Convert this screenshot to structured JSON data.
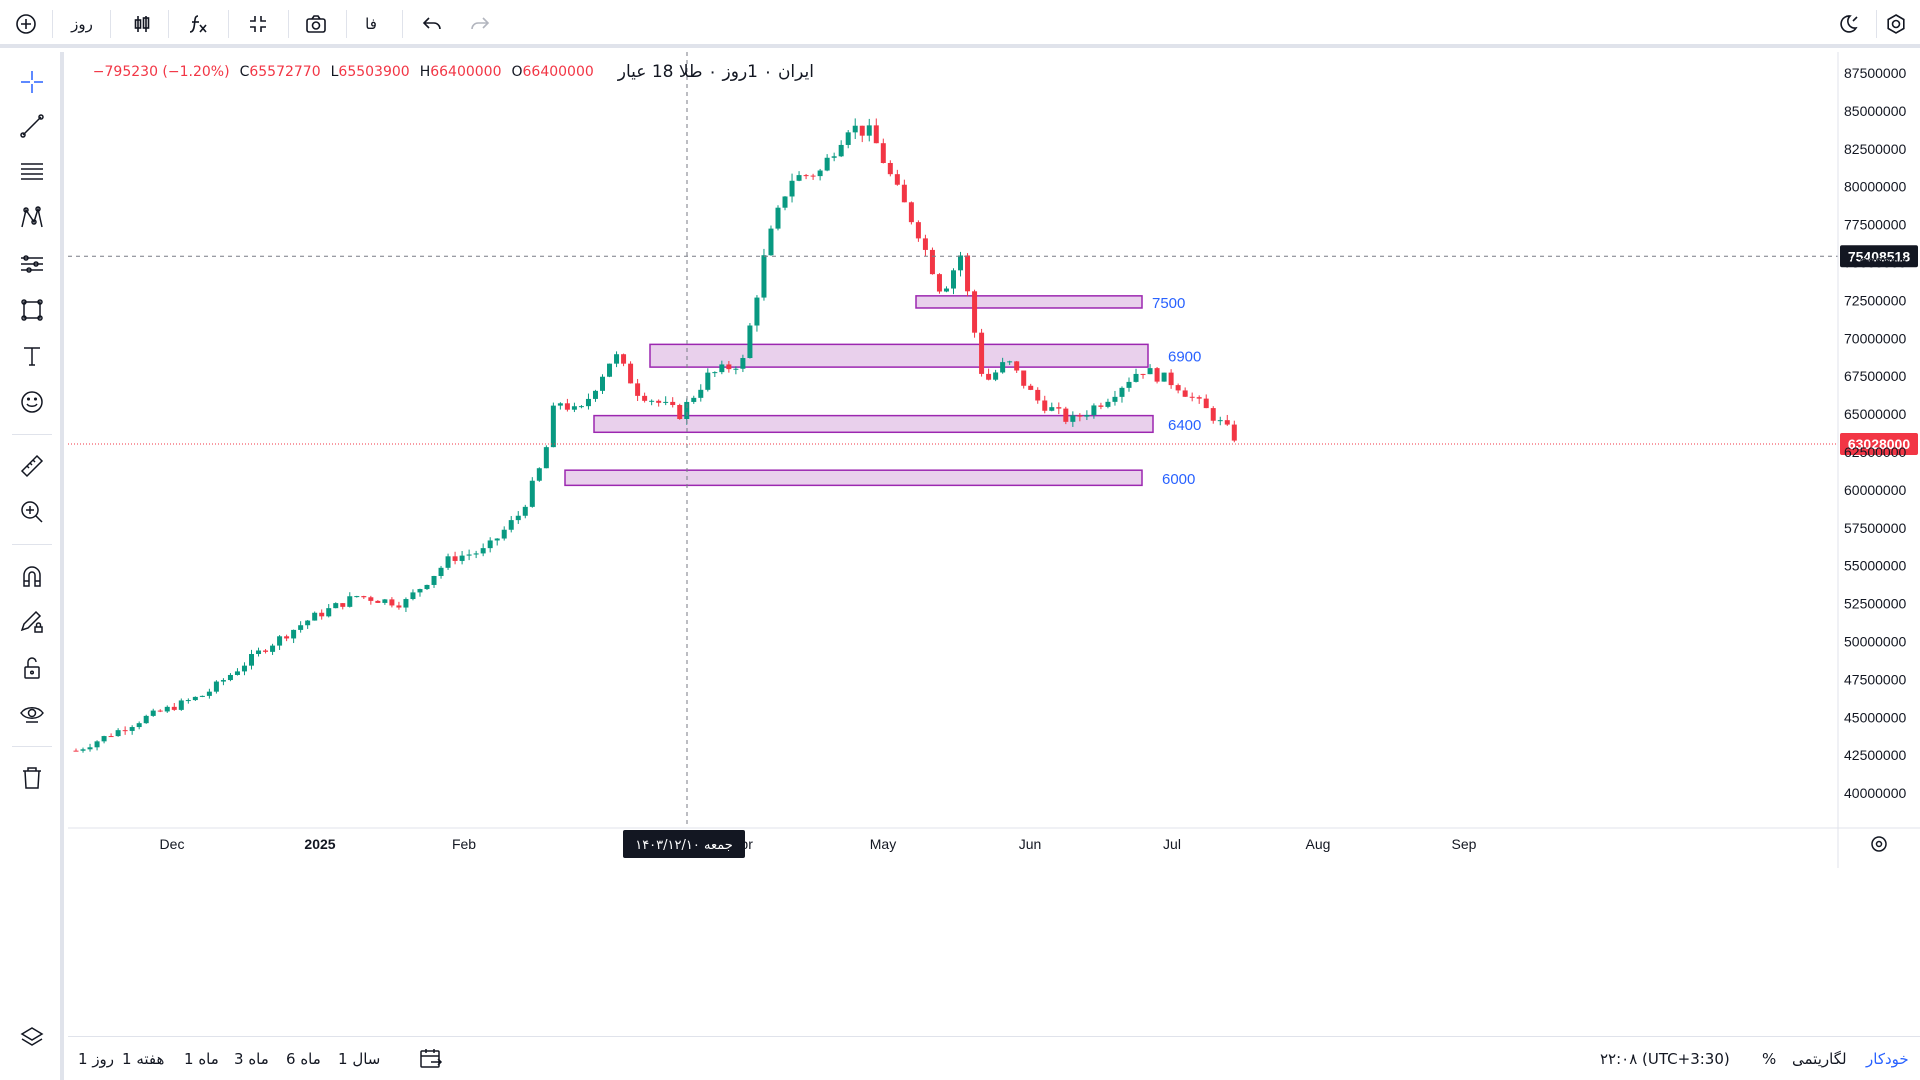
{
  "toolbar": {
    "interval_label": "روز",
    "symbol_lang_label": "فا"
  },
  "legend": {
    "symbol": "ایران ۰ 1روز ۰ طلا 18 عیار",
    "o_label": "O",
    "o_value": "66400000",
    "h_label": "H",
    "h_value": "66400000",
    "l_label": "L",
    "l_value": "65503900",
    "c_label": "C",
    "c_value": "65572770",
    "change": "−795230 (−1.20%)"
  },
  "price_axis": {
    "ticks": [
      "87500000",
      "85000000",
      "82500000",
      "80000000",
      "77500000",
      "75000000",
      "72500000",
      "70000000",
      "67500000",
      "65000000",
      "62500000",
      "60000000",
      "57500000",
      "55000000",
      "52500000",
      "50000000",
      "47500000",
      "45000000",
      "42500000",
      "40000000"
    ],
    "crosshair_price": "75408518",
    "last_price": "63028000"
  },
  "time_axis": {
    "labels": [
      "Dec",
      "2025",
      "Feb",
      "Apr",
      "May",
      "Jun",
      "Jul",
      "Aug",
      "Sep"
    ],
    "crosshair_date": "جمعه ۱۴۰۳/۱۲/۱۰"
  },
  "zones": [
    {
      "label": "7500",
      "top": 72800000,
      "bottom": 72000000
    },
    {
      "label": "6900",
      "top": 69600000,
      "bottom": 68100000
    },
    {
      "label": "6400",
      "top": 64900000,
      "bottom": 63800000
    },
    {
      "label": "6000",
      "top": 61300000,
      "bottom": 60300000
    }
  ],
  "bottom": {
    "ranges": [
      "1 روز",
      "1 هفته",
      "1 ماه",
      "3 ماه",
      "6 ماه",
      "1 سال"
    ],
    "time": "۲۲:۰۸ (UTC+3:30)",
    "percent": "%",
    "log": "لگاریتمی",
    "auto": "خودکار"
  },
  "colors": {
    "up": "#089981",
    "down": "#f23645",
    "zone_fill": "#e9d0ec",
    "zone_stroke": "#9c27b0",
    "zone_text": "#2962ff"
  }
}
